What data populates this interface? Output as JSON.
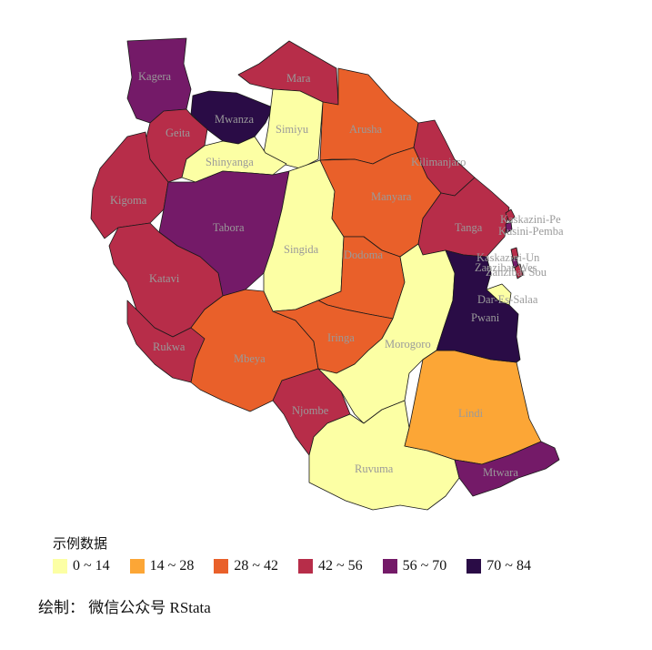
{
  "legend": {
    "title": "示例数据",
    "items": [
      {
        "label": "0 ~ 14",
        "color": "#FCFFA4"
      },
      {
        "label": "14 ~ 28",
        "color": "#FCA636"
      },
      {
        "label": "28 ~ 42",
        "color": "#E9602A"
      },
      {
        "label": "42 ~ 56",
        "color": "#B72D49"
      },
      {
        "label": "56 ~ 70",
        "color": "#741A68"
      },
      {
        "label": "70 ~ 84",
        "color": "#2A0C46"
      }
    ]
  },
  "caption": "绘制： 微信公众号 RStata",
  "regions": [
    {
      "name": "Kagera",
      "class": 4
    },
    {
      "name": "Mara",
      "class": 3
    },
    {
      "name": "Mwanza",
      "class": 5
    },
    {
      "name": "Simiyu",
      "class": 0
    },
    {
      "name": "Geita",
      "class": 3
    },
    {
      "name": "Shinyanga",
      "class": 0
    },
    {
      "name": "Arusha",
      "class": 2
    },
    {
      "name": "Kilimanjaro",
      "class": 3
    },
    {
      "name": "Kigoma",
      "class": 3
    },
    {
      "name": "Tabora",
      "class": 4
    },
    {
      "name": "Singida",
      "class": 0
    },
    {
      "name": "Manyara",
      "class": 2
    },
    {
      "name": "Tanga",
      "class": 3
    },
    {
      "name": "Dodoma",
      "class": 2
    },
    {
      "name": "Katavi",
      "class": 3
    },
    {
      "name": "Rukwa",
      "class": 3
    },
    {
      "name": "Mbeya",
      "class": 2
    },
    {
      "name": "Iringa",
      "class": 2
    },
    {
      "name": "Morogoro",
      "class": 0
    },
    {
      "name": "Njombe",
      "class": 3
    },
    {
      "name": "Ruvuma",
      "class": 0
    },
    {
      "name": "Lindi",
      "class": 1
    },
    {
      "name": "Mtwara",
      "class": 4
    },
    {
      "name": "Pwani",
      "class": 5
    },
    {
      "name": "Dar-Es-Salaa",
      "class": 0
    },
    {
      "name": "Kaskazini-Pe",
      "class": 3
    },
    {
      "name": "Kusini-Pemba",
      "class": 4
    },
    {
      "name": "Kaskazini-Un",
      "class": 3
    },
    {
      "name": "Zanzibar Wes",
      "class": 4
    },
    {
      "name": "Zanzibar Sou",
      "class": 3
    }
  ]
}
